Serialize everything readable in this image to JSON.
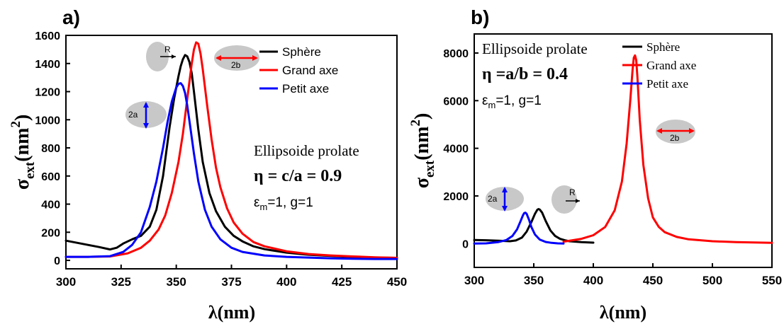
{
  "colors": {
    "sphere": "#000000",
    "major": "#ff0000",
    "minor": "#0000ff",
    "shape": "#c8c8c8"
  },
  "chart_data": [
    {
      "panel_label": "a)",
      "type": "line",
      "xlabel": "λ(nm)",
      "ylabel_main": "σ",
      "ylabel_sub": "ext",
      "ylabel_unit": "(nm",
      "ylabel_sup": "2",
      "ylabel_close": ")",
      "xlim": [
        300,
        450
      ],
      "ylim": [
        -60,
        1600
      ],
      "xticks": [
        "300",
        "325",
        "350",
        "375",
        "400",
        "425",
        "450"
      ],
      "yticks": [
        "0",
        "200",
        "400",
        "600",
        "800",
        "1000",
        "1200",
        "1400",
        "1600"
      ],
      "legend": [
        "Sphère",
        "Grand axe",
        "Petit axe"
      ],
      "annotation": {
        "line1": "Ellipsoide prolate",
        "line2": "η = c/a = 0.9",
        "line3_a": "ε",
        "line3_sub": "m",
        "line3_b": "=1, g=1"
      },
      "shape_labels": {
        "sphere": "R",
        "major": "2b",
        "minor": "2a"
      },
      "series": [
        {
          "name": "Sphère",
          "color_key": "sphere",
          "x": [
            300,
            305,
            310,
            315,
            320,
            323,
            326,
            330,
            334,
            338,
            341,
            344,
            347,
            349,
            351,
            352,
            353,
            354,
            355,
            356,
            357,
            358,
            360,
            362,
            365,
            368,
            372,
            376,
            380,
            385,
            390,
            400,
            410,
            420,
            430,
            440,
            450
          ],
          "y": [
            140,
            125,
            110,
            95,
            78,
            90,
            120,
            150,
            175,
            240,
            360,
            600,
            950,
            1150,
            1310,
            1380,
            1430,
            1460,
            1450,
            1410,
            1330,
            1200,
            930,
            700,
            480,
            350,
            240,
            175,
            135,
            100,
            80,
            55,
            40,
            32,
            25,
            20,
            18
          ]
        },
        {
          "name": "Grand axe",
          "color_key": "major",
          "x": [
            300,
            310,
            320,
            328,
            334,
            338,
            342,
            345,
            348,
            351,
            353,
            355,
            357,
            358,
            359,
            360,
            361,
            362,
            364,
            366,
            368,
            370,
            373,
            376,
            380,
            385,
            390,
            400,
            410,
            420,
            430,
            440,
            450
          ],
          "y": [
            25,
            25,
            28,
            50,
            90,
            140,
            220,
            320,
            480,
            700,
            900,
            1150,
            1400,
            1500,
            1550,
            1540,
            1470,
            1360,
            1100,
            860,
            660,
            520,
            370,
            270,
            190,
            130,
            100,
            65,
            45,
            35,
            28,
            22,
            18
          ]
        },
        {
          "name": "Petit axe",
          "color_key": "minor",
          "x": [
            300,
            310,
            320,
            326,
            330,
            334,
            338,
            341,
            344,
            346,
            348,
            350,
            351,
            352,
            353,
            354,
            355,
            356,
            358,
            360,
            363,
            366,
            370,
            375,
            380,
            390,
            400,
            410,
            420,
            430,
            440,
            450
          ],
          "y": [
            25,
            25,
            30,
            60,
            110,
            200,
            380,
            560,
            800,
            980,
            1130,
            1230,
            1255,
            1260,
            1240,
            1190,
            1100,
            990,
            760,
            560,
            360,
            240,
            150,
            90,
            60,
            35,
            25,
            20,
            15,
            12,
            10,
            10
          ]
        }
      ]
    },
    {
      "panel_label": "b)",
      "type": "line",
      "xlabel": "λ(nm)",
      "ylabel_main": "σ",
      "ylabel_sub": "ext",
      "ylabel_unit": "(nm",
      "ylabel_sup": "2",
      "ylabel_close": ")",
      "xlim": [
        300,
        550
      ],
      "ylim": [
        -1000,
        8800
      ],
      "xticks": [
        "300",
        "350",
        "400",
        "450",
        "500",
        "550"
      ],
      "yticks": [
        "0",
        "2000",
        "4000",
        "6000",
        "8000"
      ],
      "legend": [
        "Sphère",
        "Grand axe",
        "Petit axe"
      ],
      "annotation": {
        "line1": "Ellipsoide prolate",
        "line2": "η =a/b = 0.4",
        "line3_a": "ε",
        "line3_sub": "m",
        "line3_b": "=1, g=1"
      },
      "shape_labels": {
        "sphere": "R",
        "major": "2b",
        "minor": "2a"
      },
      "series": [
        {
          "name": "Sphère",
          "color_key": "sphere",
          "x": [
            300,
            310,
            320,
            330,
            335,
            340,
            344,
            348,
            351,
            353,
            354,
            355,
            357,
            360,
            364,
            368,
            372,
            376,
            380,
            390,
            400
          ],
          "y": [
            150,
            140,
            120,
            100,
            130,
            250,
            500,
            900,
            1250,
            1420,
            1450,
            1430,
            1300,
            950,
            550,
            320,
            200,
            140,
            100,
            60,
            40
          ]
        },
        {
          "name": "Grand axe",
          "color_key": "major",
          "x": [
            375,
            390,
            400,
            410,
            418,
            424,
            428,
            431,
            433,
            434,
            435,
            436,
            437,
            439,
            442,
            446,
            450,
            455,
            460,
            470,
            480,
            500,
            520,
            550
          ],
          "y": [
            80,
            200,
            350,
            700,
            1400,
            2600,
            4200,
            6000,
            7300,
            7800,
            7900,
            7700,
            7000,
            5200,
            3300,
            1900,
            1100,
            700,
            480,
            280,
            180,
            100,
            60,
            30
          ]
        },
        {
          "name": "Petit axe",
          "color_key": "minor",
          "x": [
            300,
            310,
            320,
            327,
            332,
            336,
            339,
            341,
            342,
            343,
            344,
            346,
            348,
            351,
            355,
            360,
            365,
            370,
            375
          ],
          "y": [
            0,
            10,
            60,
            150,
            320,
            600,
            950,
            1200,
            1280,
            1300,
            1250,
            1000,
            700,
            380,
            170,
            70,
            30,
            10,
            5
          ]
        }
      ]
    }
  ]
}
